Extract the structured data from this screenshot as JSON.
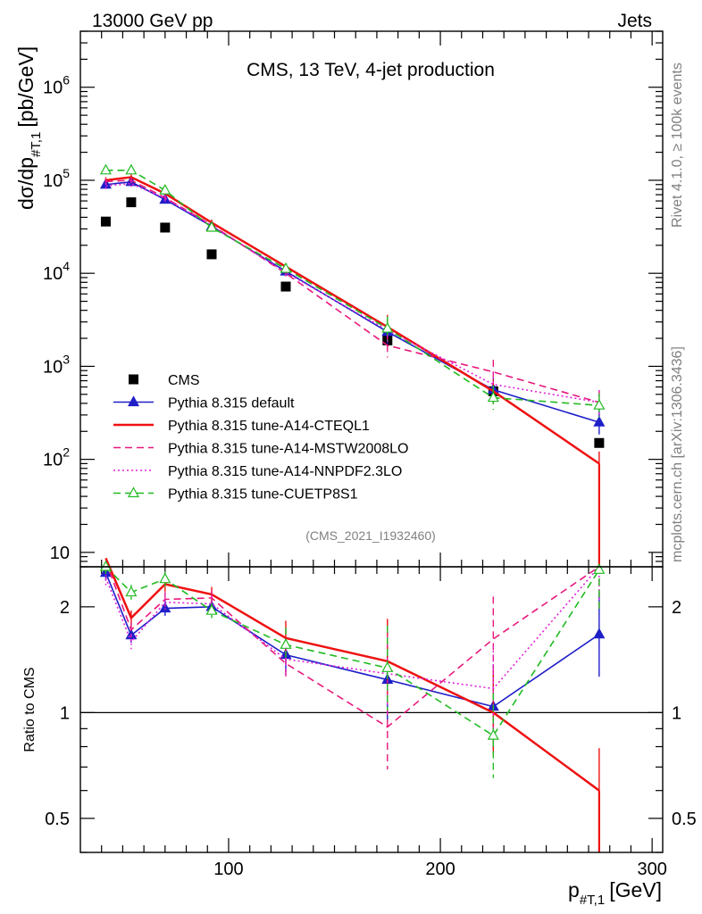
{
  "header": {
    "left": "13000 GeV pp",
    "right": "Jets"
  },
  "side_labels": {
    "top": "Rivet 4.1.0, ≥ 100k events",
    "bottom": "mcplots.cern.ch [arXiv:1306.3436]"
  },
  "analysis_tag": "(CMS_2021_I1932460)",
  "chart_data": [
    {
      "type": "line",
      "panel": "main",
      "title": "CMS, 13 TeV, 4-jet production",
      "ylabel": "dσ/dp",
      "ylabel_sub": "#T,1",
      "ylabel_unit": "[pb/GeV]",
      "yscale": "log",
      "xlim": [
        30,
        305
      ],
      "ylim": [
        7,
        4000000
      ],
      "ytick_labels": [
        {
          "value": 10,
          "base": "10",
          "exp": ""
        },
        {
          "value": 100,
          "base": "10",
          "exp": "2"
        },
        {
          "value": 1000,
          "base": "10",
          "exp": "3"
        },
        {
          "value": 10000,
          "base": "10",
          "exp": "4"
        },
        {
          "value": 100000,
          "base": "10",
          "exp": "5"
        },
        {
          "value": 1000000,
          "base": "10",
          "exp": "6"
        }
      ],
      "x": [
        42,
        54,
        70,
        92,
        127,
        175,
        225,
        275
      ],
      "series": [
        {
          "name": "CMS",
          "color": "#000000",
          "dash": "none",
          "marker": "square",
          "values": [
            36000,
            58000,
            31000,
            16000,
            7200,
            1900,
            540,
            150
          ]
        },
        {
          "name": "Pythia 8.315 default",
          "color": "#1f1fc8",
          "dash": "none",
          "marker": "triangle-filled",
          "values": [
            90000,
            96000,
            62000,
            32000,
            10500,
            2350,
            560,
            250
          ]
        },
        {
          "name": "Pythia 8.315 tune-A14-CTEQL1",
          "color": "#ee1111",
          "dash": "none",
          "marker": "none",
          "values": [
            100000,
            108000,
            72000,
            35000,
            11800,
            2650,
            540,
            90
          ]
        },
        {
          "name": "Pythia 8.315 tune-A14-MSTW2008LO",
          "color": "#e8187c",
          "dash": "dashed",
          "marker": "none",
          "values": [
            97000,
            100000,
            65000,
            33000,
            10000,
            1680,
            870,
            410
          ]
        },
        {
          "name": "Pythia 8.315 tune-A14-NNPDF2.3LO",
          "color": "#e020d8",
          "dash": "dotted",
          "marker": "none",
          "values": [
            87000,
            92000,
            64000,
            32500,
            10200,
            2450,
            640,
            410
          ]
        },
        {
          "name": "Pythia 8.315 tune-CUETP8S1",
          "color": "#22bb22",
          "dash": "dashed",
          "marker": "triangle-open",
          "values": [
            128000,
            128000,
            78000,
            31000,
            11200,
            2550,
            460,
            380
          ]
        }
      ]
    },
    {
      "type": "line",
      "panel": "ratio",
      "ylabel": "Ratio to CMS",
      "yscale": "log",
      "ylim": [
        0.4,
        2.6
      ],
      "yticks": [
        0.5,
        1,
        2
      ],
      "ytick_labels": [
        "0.5",
        "1",
        "2"
      ],
      "xticks": [
        100,
        200,
        300
      ],
      "xtick_labels": [
        "100",
        "200",
        "300"
      ],
      "xlabel": "p",
      "xlabel_sub": "#T,1",
      "xlabel_unit": "[GeV]",
      "x": [
        42,
        54,
        70,
        92,
        127,
        175,
        225,
        275
      ],
      "series": [
        {
          "name": "Pythia 8.315 default",
          "values": [
            2.5,
            1.66,
            1.98,
            2.0,
            1.46,
            1.24,
            1.04,
            1.67
          ]
        },
        {
          "name": "Pythia 8.315 tune-A14-CTEQL1",
          "values": [
            2.75,
            1.86,
            2.32,
            2.17,
            1.63,
            1.4,
            1.0,
            0.6
          ]
        },
        {
          "name": "Pythia 8.315 tune-A14-MSTW2008LO",
          "values": [
            2.7,
            1.72,
            2.1,
            2.12,
            1.38,
            0.91,
            1.62,
            2.6
          ]
        },
        {
          "name": "Pythia 8.315 tune-A14-NNPDF2.3LO",
          "values": [
            2.42,
            1.59,
            2.06,
            2.04,
            1.42,
            1.29,
            1.17,
            2.6
          ]
        },
        {
          "name": "Pythia 8.315 tune-CUETP8S1",
          "values": [
            2.6,
            2.2,
            2.4,
            1.95,
            1.56,
            1.34,
            0.86,
            2.55
          ]
        }
      ]
    }
  ]
}
